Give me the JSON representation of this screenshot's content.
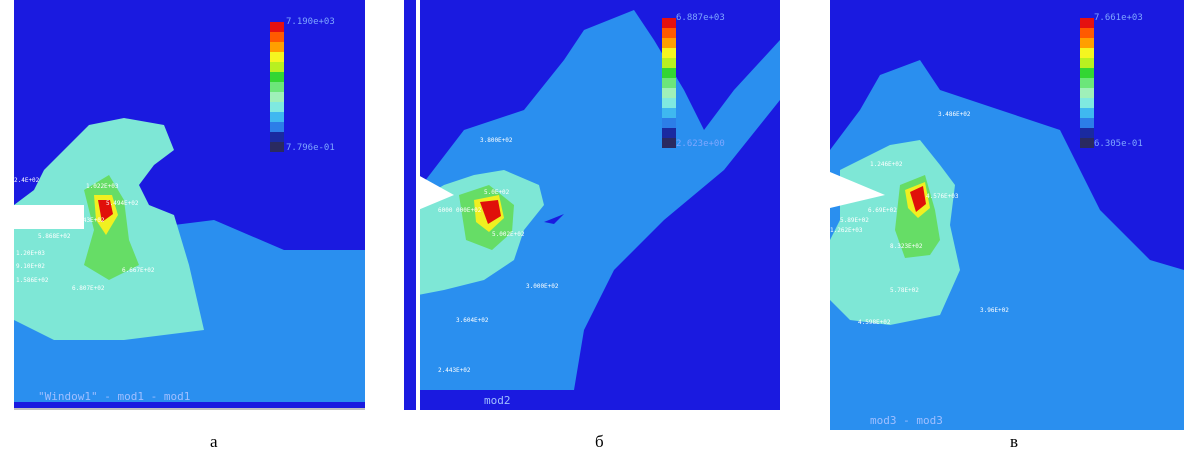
{
  "colors": {
    "background": "#1a1ae0",
    "cyan_field": "#2a8fef",
    "light_cyan": "#7ee7d6",
    "green": "#33cc33",
    "yellow": "#f0f020",
    "red": "#e0100a",
    "orange": "#ff7700"
  },
  "legend_colors": [
    "#e51010",
    "#ff5a00",
    "#ff9f00",
    "#f5f520",
    "#b8f020",
    "#33d633",
    "#6ce67a",
    "#9ff0b9",
    "#7fe9e0",
    "#3fb8f0",
    "#2c7ee8",
    "#1a2aa0",
    "#2a2a60"
  ],
  "panels": [
    {
      "caption": "а",
      "legend_max": "7.190e+03",
      "legend_min": "7.796e-01",
      "footer": "\"Window1\" - mod1 - mod1",
      "labels": [
        "1.022E+03",
        "5.494E+02",
        "6.843E+02",
        "5.868E+02",
        "1.20E+03",
        "9.10E+02",
        "1.586E+02",
        "6.667E+02",
        "6.807E+02",
        "2.4E+02"
      ]
    },
    {
      "caption": "б",
      "legend_max": "6.887e+03",
      "legend_min": "2.623e+00",
      "footer": "mod2",
      "labels": [
        "3.800E+02",
        "6000 000E+02",
        "5.0E+02",
        "5.002E+02",
        "3.000E+02",
        "3.604E+02",
        "2.443E+02"
      ]
    },
    {
      "caption": "в",
      "legend_max": "7.661e+03",
      "legend_min": "6.305e-01",
      "footer": "mod3 - mod3",
      "labels": [
        "3.486E+02",
        "1.246E+02",
        "1.262E+03",
        "5.89E+02",
        "6.69E+02",
        "4.576E+03",
        "8.323E+02",
        "5.78E+02",
        "4.598E+02",
        "3.96E+02"
      ]
    }
  ]
}
